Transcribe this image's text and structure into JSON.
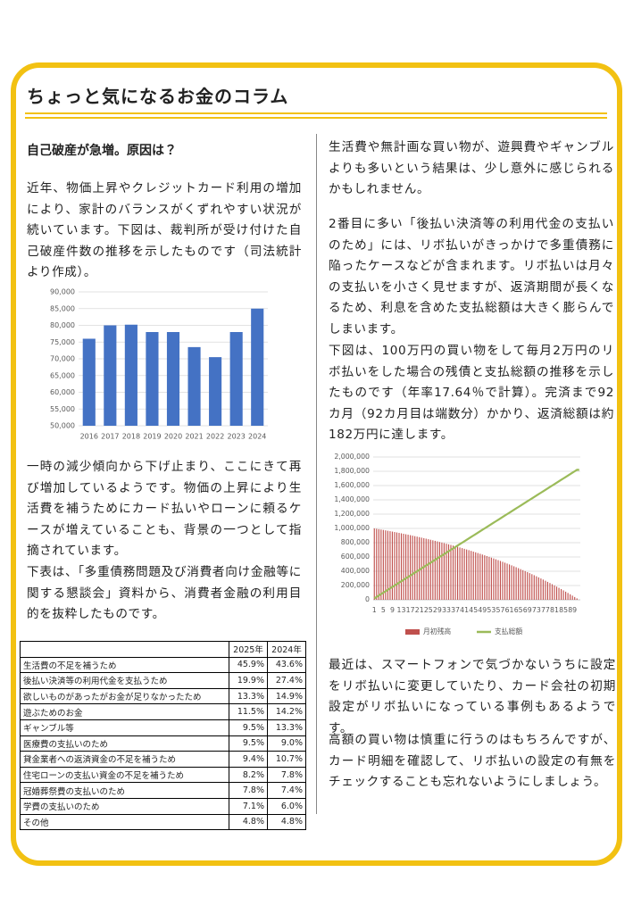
{
  "header": {
    "title": "ちょっと気になるお金のコラム"
  },
  "left": {
    "heading": "自己破産が急増。原因は？",
    "paragraphs": [
      "近年、物価上昇やクレジットカード利用の増加により、家計のバランスがくずれやすい状況が続いています。下図は、裁判所が受け付けた自己破産件数の推移を示したものです（司法統計より作成）。",
      "一時の減少傾向から下げ止まり、ここにきて再び増加しているようです。物価の上昇により生活費を補うためにカード払いやローンに頼るケースが増えていることも、背景の一つとして指摘されています。",
      "下表は、「多重債務問題及び消費者向け金融等に関する懇談会」資料から、消費者金融の利用目的を抜粋したものです。"
    ]
  },
  "right": {
    "paragraphs": [
      "生活費や無計画な買い物が、遊興費やギャンブルよりも多いという結果は、少し意外に感じられるかもしれません。",
      "2番目に多い「後払い決済等の利用代金の支払いのため」には、リボ払いがきっかけで多重債務に陥ったケースなどが含まれます。リボ払いは月々の支払いを小さく見せますが、返済期間が長くなるため、利息を含めた支払総額は大きく膨らんでしまいます。",
      "下図は、100万円の買い物をして毎月2万円のリボ払いをした場合の残債と支払総額の推移を示したものです（年率17.64％で計算）。完済まで92カ月（92カ月目は端数分）かかり、返済総額は約182万円に達します。",
      "最近は、スマートフォンで気づかないうちに設定をリボ払いに変更していたり、カード会社の初期設定がリボ払いになっている事例もあるようです。",
      "高額の買い物は慎重に行うのはもちろんですが、カード明細を確認して、リボ払いの設定の有無をチェックすることも忘れないようにしましょう。"
    ]
  },
  "chart_data": [
    {
      "type": "bar",
      "categories": [
        "2016",
        "2017",
        "2018",
        "2019",
        "2020",
        "2021",
        "2022",
        "2023",
        "2024"
      ],
      "values": [
        76000,
        80000,
        80200,
        78000,
        78000,
        73500,
        70500,
        78000,
        85000
      ],
      "color": "#4472c4",
      "ylim": [
        50000,
        90000
      ],
      "yticks": [
        {
          "value": 50000,
          "label": "50,000"
        },
        {
          "value": 55000,
          "label": "55,000"
        },
        {
          "value": 60000,
          "label": "60,000"
        },
        {
          "value": 65000,
          "label": "65,000"
        },
        {
          "value": 70000,
          "label": "70,000"
        },
        {
          "value": 75000,
          "label": "75,000"
        },
        {
          "value": 80000,
          "label": "80,000"
        },
        {
          "value": 85000,
          "label": "85,000"
        },
        {
          "value": 90000,
          "label": "90,000"
        }
      ],
      "grid": true
    },
    {
      "type": "combo",
      "categories": [
        1,
        null,
        null,
        null,
        5,
        null,
        null,
        null,
        9,
        null,
        null,
        null,
        13,
        null,
        null,
        null,
        17,
        null,
        null,
        null,
        21,
        null,
        null,
        null,
        25,
        null,
        null,
        null,
        29,
        null,
        null,
        null,
        33,
        null,
        null,
        null,
        37,
        null,
        null,
        null,
        41,
        null,
        null,
        null,
        45,
        null,
        null,
        null,
        49,
        null,
        null,
        null,
        53,
        null,
        null,
        null,
        57,
        null,
        null,
        null,
        61,
        null,
        null,
        null,
        65,
        null,
        null,
        null,
        69,
        null,
        null,
        null,
        73,
        null,
        null,
        null,
        77,
        null,
        null,
        null,
        81,
        null,
        null,
        null,
        85,
        null,
        null,
        null,
        89,
        null,
        null,
        null
      ],
      "series": [
        {
          "name": "月初残高",
          "type": "bar",
          "color": "#c0504d",
          "values": [
            1000000,
            994700,
            989300,
            983800,
            978300,
            972700,
            967000,
            961200,
            955300,
            949300,
            943300,
            937200,
            931000,
            924700,
            918300,
            911800,
            905200,
            898500,
            891700,
            884800,
            877800,
            870700,
            863500,
            856200,
            848800,
            841300,
            833700,
            826000,
            818100,
            810100,
            802000,
            793800,
            785500,
            777000,
            768400,
            759700,
            750900,
            741900,
            732800,
            723600,
            714200,
            704700,
            695100,
            685300,
            675400,
            665300,
            655100,
            644700,
            634200,
            623500,
            612700,
            601700,
            590500,
            579200,
            567700,
            556000,
            544200,
            532200,
            520000,
            507600,
            495100,
            482400,
            469500,
            456400,
            443100,
            429600,
            415900,
            402000,
            387900,
            373600,
            359100,
            344400,
            329500,
            314300,
            298900,
            283300,
            267500,
            251400,
            235100,
            218600,
            201800,
            184800,
            167500,
            150000,
            132200,
            114100,
            95800,
            77200,
            58300,
            39200,
            19800,
            100
          ]
        },
        {
          "name": "支払総額",
          "type": "line",
          "color": "#9bbb59",
          "values": [
            20000,
            40000,
            60000,
            80000,
            100000,
            120000,
            140000,
            160000,
            180000,
            200000,
            220000,
            240000,
            260000,
            280000,
            300000,
            320000,
            340000,
            360000,
            380000,
            400000,
            420000,
            440000,
            460000,
            480000,
            500000,
            520000,
            540000,
            560000,
            580000,
            600000,
            620000,
            640000,
            660000,
            680000,
            700000,
            720000,
            740000,
            760000,
            780000,
            800000,
            820000,
            840000,
            860000,
            880000,
            900000,
            920000,
            940000,
            960000,
            980000,
            1000000,
            1020000,
            1040000,
            1060000,
            1080000,
            1100000,
            1120000,
            1140000,
            1160000,
            1180000,
            1200000,
            1220000,
            1240000,
            1260000,
            1280000,
            1300000,
            1320000,
            1340000,
            1360000,
            1380000,
            1400000,
            1420000,
            1440000,
            1460000,
            1480000,
            1500000,
            1520000,
            1540000,
            1560000,
            1580000,
            1600000,
            1620000,
            1640000,
            1660000,
            1680000,
            1700000,
            1720000,
            1740000,
            1760000,
            1780000,
            1800000,
            1820000,
            1820100
          ]
        }
      ],
      "ylim": [
        0,
        2000000
      ],
      "yticks": [
        0,
        {
          "value": 200000,
          "label": "200,000"
        },
        {
          "value": 400000,
          "label": "400,000"
        },
        {
          "value": 600000,
          "label": "600,000"
        },
        {
          "value": 800000,
          "label": "800,000"
        },
        {
          "value": 1000000,
          "label": "1,000,000"
        },
        {
          "value": 1200000,
          "label": "1,200,000"
        },
        {
          "value": 1400000,
          "label": "1,400,000"
        },
        {
          "value": 1600000,
          "label": "1,600,000"
        },
        {
          "value": 1800000,
          "label": "1,800,000"
        },
        {
          "value": 2000000,
          "label": "2,000,000"
        }
      ],
      "grid": true,
      "legend": "bottom"
    }
  ],
  "table": {
    "columns": [
      "2025年",
      "2024年"
    ],
    "rows": [
      [
        "生活費の不足を補うため",
        "45.9%",
        "43.6%"
      ],
      [
        "後払い決済等の利用代金を支払うため",
        "19.9%",
        "27.4%"
      ],
      [
        "欲しいものがあったがお金が足りなかったため",
        "13.3%",
        "14.9%"
      ],
      [
        "遊ぶためのお金",
        "11.5%",
        "14.2%"
      ],
      [
        "ギャンブル等",
        "9.5%",
        "13.3%"
      ],
      [
        "医療費の支払いのため",
        "9.5%",
        "9.0%"
      ],
      [
        "貸金業者への返済資金の不足を補うため",
        "9.4%",
        "10.7%"
      ],
      [
        "住宅ローンの支払い資金の不足を補うため",
        "8.2%",
        "7.8%"
      ],
      [
        "冠婚葬祭費の支払いのため",
        "7.8%",
        "7.4%"
      ],
      [
        "学費の支払いのため",
        "7.1%",
        "6.0%"
      ],
      [
        "その他",
        "4.8%",
        "4.8%"
      ]
    ]
  }
}
